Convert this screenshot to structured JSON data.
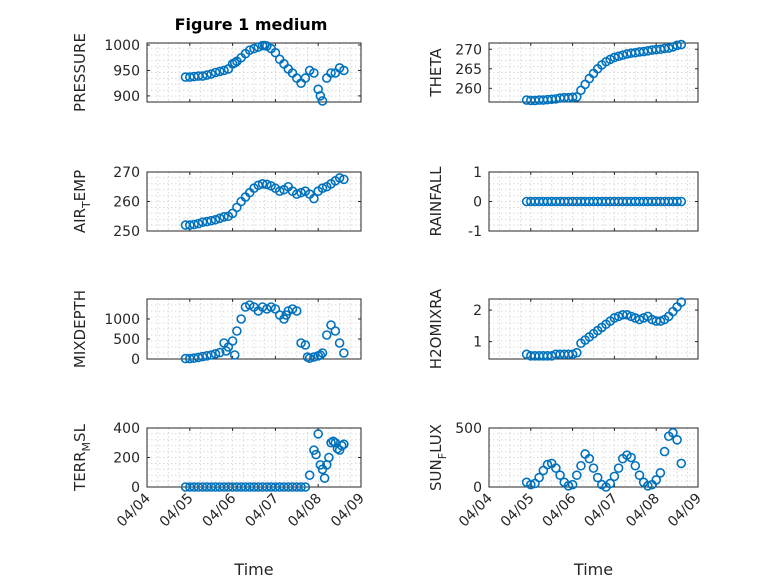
{
  "figure": {
    "title": "Figure 1 medium",
    "marker_color": "#0072BD",
    "x_tick_labels": [
      "04/04",
      "04/05",
      "04/06",
      "04/07",
      "04/08",
      "04/09"
    ],
    "x_label": "Time"
  },
  "chart_data": [
    {
      "type": "scatter",
      "ylabel": "PRESSURE",
      "xlim": [
        0,
        5
      ],
      "ylim": [
        888,
        1004
      ],
      "yticks": [
        900,
        950,
        1000
      ],
      "ytick_labels": [
        "900",
        "950",
        "1000"
      ],
      "x": [
        0.9,
        1.0,
        1.1,
        1.2,
        1.3,
        1.4,
        1.5,
        1.6,
        1.7,
        1.8,
        1.9,
        2.0,
        2.05,
        2.1,
        2.2,
        2.3,
        2.4,
        2.5,
        2.6,
        2.7,
        2.75,
        2.8,
        2.9,
        3.0,
        3.1,
        3.2,
        3.3,
        3.4,
        3.5,
        3.6,
        3.7,
        3.8,
        3.9,
        4.0,
        4.05,
        4.1,
        4.2,
        4.3,
        4.4,
        4.5,
        4.6
      ],
      "y": [
        937,
        937,
        938,
        939,
        939,
        941,
        943,
        946,
        948,
        950,
        953,
        963,
        965,
        968,
        975,
        983,
        990,
        993,
        996,
        999,
        999,
        998,
        993,
        985,
        972,
        963,
        953,
        945,
        935,
        925,
        935,
        950,
        945,
        913,
        900,
        890,
        935,
        945,
        945,
        955,
        950
      ]
    },
    {
      "type": "scatter",
      "ylabel": "THETA",
      "xlim": [
        0,
        5
      ],
      "ylim": [
        256.5,
        271.6
      ],
      "yticks": [
        260,
        265,
        270
      ],
      "ytick_labels": [
        "260",
        "265",
        "270"
      ],
      "x": [
        0.9,
        1.0,
        1.1,
        1.2,
        1.3,
        1.4,
        1.5,
        1.6,
        1.7,
        1.8,
        1.9,
        2.0,
        2.1,
        2.2,
        2.3,
        2.4,
        2.5,
        2.6,
        2.7,
        2.8,
        2.9,
        3.0,
        3.1,
        3.2,
        3.3,
        3.4,
        3.5,
        3.6,
        3.7,
        3.8,
        3.9,
        4.0,
        4.1,
        4.2,
        4.3,
        4.4,
        4.5,
        4.6
      ],
      "y": [
        257,
        256.9,
        256.9,
        257,
        257,
        257.1,
        257.2,
        257.3,
        257.5,
        257.6,
        257.6,
        257.7,
        257.8,
        259.5,
        261,
        262.5,
        263.8,
        265,
        266,
        266.8,
        267.4,
        267.9,
        268.2,
        268.5,
        268.8,
        269,
        269.1,
        269.3,
        269.4,
        269.6,
        269.8,
        269.9,
        270,
        270.2,
        270.3,
        270.6,
        271,
        271.2
      ]
    },
    {
      "type": "scatter",
      "ylabel": "AIR_TEMP",
      "xlim": [
        0,
        5
      ],
      "ylim": [
        250,
        270
      ],
      "yticks": [
        250,
        260,
        270
      ],
      "ytick_labels": [
        "250",
        "260",
        "270"
      ],
      "x": [
        0.9,
        1.0,
        1.1,
        1.2,
        1.3,
        1.4,
        1.5,
        1.6,
        1.7,
        1.8,
        1.9,
        2.0,
        2.1,
        2.2,
        2.3,
        2.4,
        2.5,
        2.6,
        2.7,
        2.8,
        2.9,
        3.0,
        3.1,
        3.2,
        3.3,
        3.4,
        3.5,
        3.6,
        3.7,
        3.8,
        3.9,
        4.0,
        4.1,
        4.2,
        4.3,
        4.4,
        4.5,
        4.6
      ],
      "y": [
        252,
        252,
        252.2,
        252.5,
        253,
        253.2,
        253.5,
        253.8,
        254.3,
        254.8,
        255,
        256,
        258,
        260,
        261.5,
        263,
        264.5,
        265.5,
        266,
        265.8,
        265.3,
        264.5,
        263.5,
        264,
        265,
        263.5,
        262.5,
        263,
        263.5,
        262.5,
        261,
        263.5,
        264.5,
        265,
        266,
        267,
        268,
        267.5
      ]
    },
    {
      "type": "scatter",
      "ylabel": "RAINFALL",
      "xlim": [
        0,
        5
      ],
      "ylim": [
        -1,
        1
      ],
      "yticks": [
        -1,
        0,
        1
      ],
      "ytick_labels": [
        "-1",
        "0",
        "1"
      ],
      "x": [
        0.9,
        1.0,
        1.1,
        1.2,
        1.3,
        1.4,
        1.5,
        1.6,
        1.7,
        1.8,
        1.9,
        2.0,
        2.1,
        2.2,
        2.3,
        2.4,
        2.5,
        2.6,
        2.7,
        2.8,
        2.9,
        3.0,
        3.1,
        3.2,
        3.3,
        3.4,
        3.5,
        3.6,
        3.7,
        3.8,
        3.9,
        4.0,
        4.1,
        4.2,
        4.3,
        4.4,
        4.5,
        4.6
      ],
      "y": [
        0,
        0,
        0,
        0,
        0,
        0,
        0,
        0,
        0,
        0,
        0,
        0,
        0,
        0,
        0,
        0,
        0,
        0,
        0,
        0,
        0,
        0,
        0,
        0,
        0,
        0,
        0,
        0,
        0,
        0,
        0,
        0,
        0,
        0,
        0,
        0,
        0,
        0
      ]
    },
    {
      "type": "scatter",
      "ylabel": "MIXDEPTH",
      "xlim": [
        0,
        5
      ],
      "ylim": [
        0,
        1500
      ],
      "yticks": [
        0,
        500,
        1000
      ],
      "ytick_labels": [
        "0",
        "500",
        "1000"
      ],
      "x": [
        0.9,
        1.0,
        1.1,
        1.2,
        1.3,
        1.4,
        1.5,
        1.6,
        1.7,
        1.8,
        1.85,
        1.9,
        2.0,
        2.05,
        2.1,
        2.2,
        2.3,
        2.4,
        2.5,
        2.6,
        2.7,
        2.8,
        2.9,
        3.0,
        3.1,
        3.2,
        3.25,
        3.3,
        3.4,
        3.5,
        3.6,
        3.7,
        3.75,
        3.8,
        3.9,
        4.0,
        4.05,
        4.1,
        4.2,
        4.3,
        4.4,
        4.5,
        4.6
      ],
      "y": [
        10,
        10,
        20,
        40,
        60,
        80,
        100,
        130,
        160,
        400,
        200,
        300,
        450,
        100,
        700,
        1000,
        1300,
        1350,
        1300,
        1200,
        1300,
        1250,
        1300,
        1250,
        1100,
        1000,
        1100,
        1200,
        1250,
        1200,
        400,
        350,
        50,
        20,
        50,
        80,
        100,
        150,
        600,
        850,
        700,
        400,
        150
      ]
    },
    {
      "type": "scatter",
      "ylabel": "H2OMIXRA",
      "xlim": [
        0,
        5
      ],
      "ylim": [
        0.45,
        2.35
      ],
      "yticks": [
        1,
        2
      ],
      "ytick_labels": [
        "1",
        "2"
      ],
      "x": [
        0.9,
        1.0,
        1.1,
        1.2,
        1.3,
        1.4,
        1.5,
        1.6,
        1.7,
        1.8,
        1.9,
        2.0,
        2.1,
        2.2,
        2.3,
        2.4,
        2.5,
        2.6,
        2.7,
        2.8,
        2.9,
        3.0,
        3.1,
        3.2,
        3.3,
        3.4,
        3.5,
        3.6,
        3.7,
        3.8,
        3.9,
        4.0,
        4.1,
        4.2,
        4.3,
        4.4,
        4.5,
        4.6
      ],
      "y": [
        0.6,
        0.55,
        0.55,
        0.55,
        0.55,
        0.55,
        0.55,
        0.6,
        0.6,
        0.6,
        0.6,
        0.6,
        0.65,
        0.95,
        1.05,
        1.15,
        1.25,
        1.35,
        1.45,
        1.55,
        1.65,
        1.75,
        1.8,
        1.85,
        1.85,
        1.8,
        1.75,
        1.7,
        1.75,
        1.8,
        1.7,
        1.65,
        1.65,
        1.7,
        1.8,
        1.95,
        2.1,
        2.25
      ]
    },
    {
      "type": "scatter",
      "ylabel": "TERR_MSL",
      "xlim": [
        0,
        5
      ],
      "ylim": [
        0,
        400
      ],
      "yticks": [
        0,
        200,
        400
      ],
      "ytick_labels": [
        "0",
        "200",
        "400"
      ],
      "x": [
        0.9,
        1.0,
        1.1,
        1.2,
        1.3,
        1.4,
        1.5,
        1.6,
        1.7,
        1.8,
        1.9,
        2.0,
        2.1,
        2.2,
        2.3,
        2.4,
        2.5,
        2.6,
        2.7,
        2.8,
        2.9,
        3.0,
        3.1,
        3.2,
        3.3,
        3.4,
        3.5,
        3.6,
        3.7,
        3.8,
        3.9,
        3.95,
        4.0,
        4.05,
        4.1,
        4.15,
        4.2,
        4.25,
        4.3,
        4.35,
        4.4,
        4.45,
        4.5,
        4.55,
        4.6
      ],
      "y": [
        0,
        0,
        0,
        0,
        0,
        0,
        0,
        0,
        0,
        0,
        0,
        0,
        0,
        0,
        0,
        0,
        0,
        0,
        0,
        0,
        0,
        0,
        0,
        0,
        0,
        0,
        0,
        0,
        0,
        80,
        250,
        220,
        360,
        150,
        120,
        60,
        150,
        200,
        300,
        310,
        300,
        260,
        250,
        280,
        290
      ]
    },
    {
      "type": "scatter",
      "ylabel": "SUN_FLUX",
      "xlim": [
        0,
        5
      ],
      "ylim": [
        0,
        500
      ],
      "yticks": [
        0,
        500
      ],
      "ytick_labels": [
        "0",
        "500"
      ],
      "x": [
        0.9,
        1.0,
        1.1,
        1.2,
        1.3,
        1.4,
        1.5,
        1.6,
        1.7,
        1.8,
        1.9,
        2.0,
        2.1,
        2.2,
        2.3,
        2.4,
        2.5,
        2.6,
        2.7,
        2.8,
        2.9,
        3.0,
        3.1,
        3.2,
        3.3,
        3.4,
        3.5,
        3.6,
        3.7,
        3.8,
        3.9,
        4.0,
        4.1,
        4.2,
        4.3,
        4.4,
        4.5,
        4.6
      ],
      "y": [
        40,
        20,
        30,
        80,
        140,
        190,
        200,
        160,
        100,
        40,
        10,
        20,
        100,
        180,
        280,
        240,
        160,
        80,
        20,
        0,
        30,
        90,
        160,
        240,
        270,
        250,
        180,
        100,
        40,
        10,
        20,
        60,
        120,
        300,
        430,
        460,
        400,
        200
      ]
    }
  ]
}
